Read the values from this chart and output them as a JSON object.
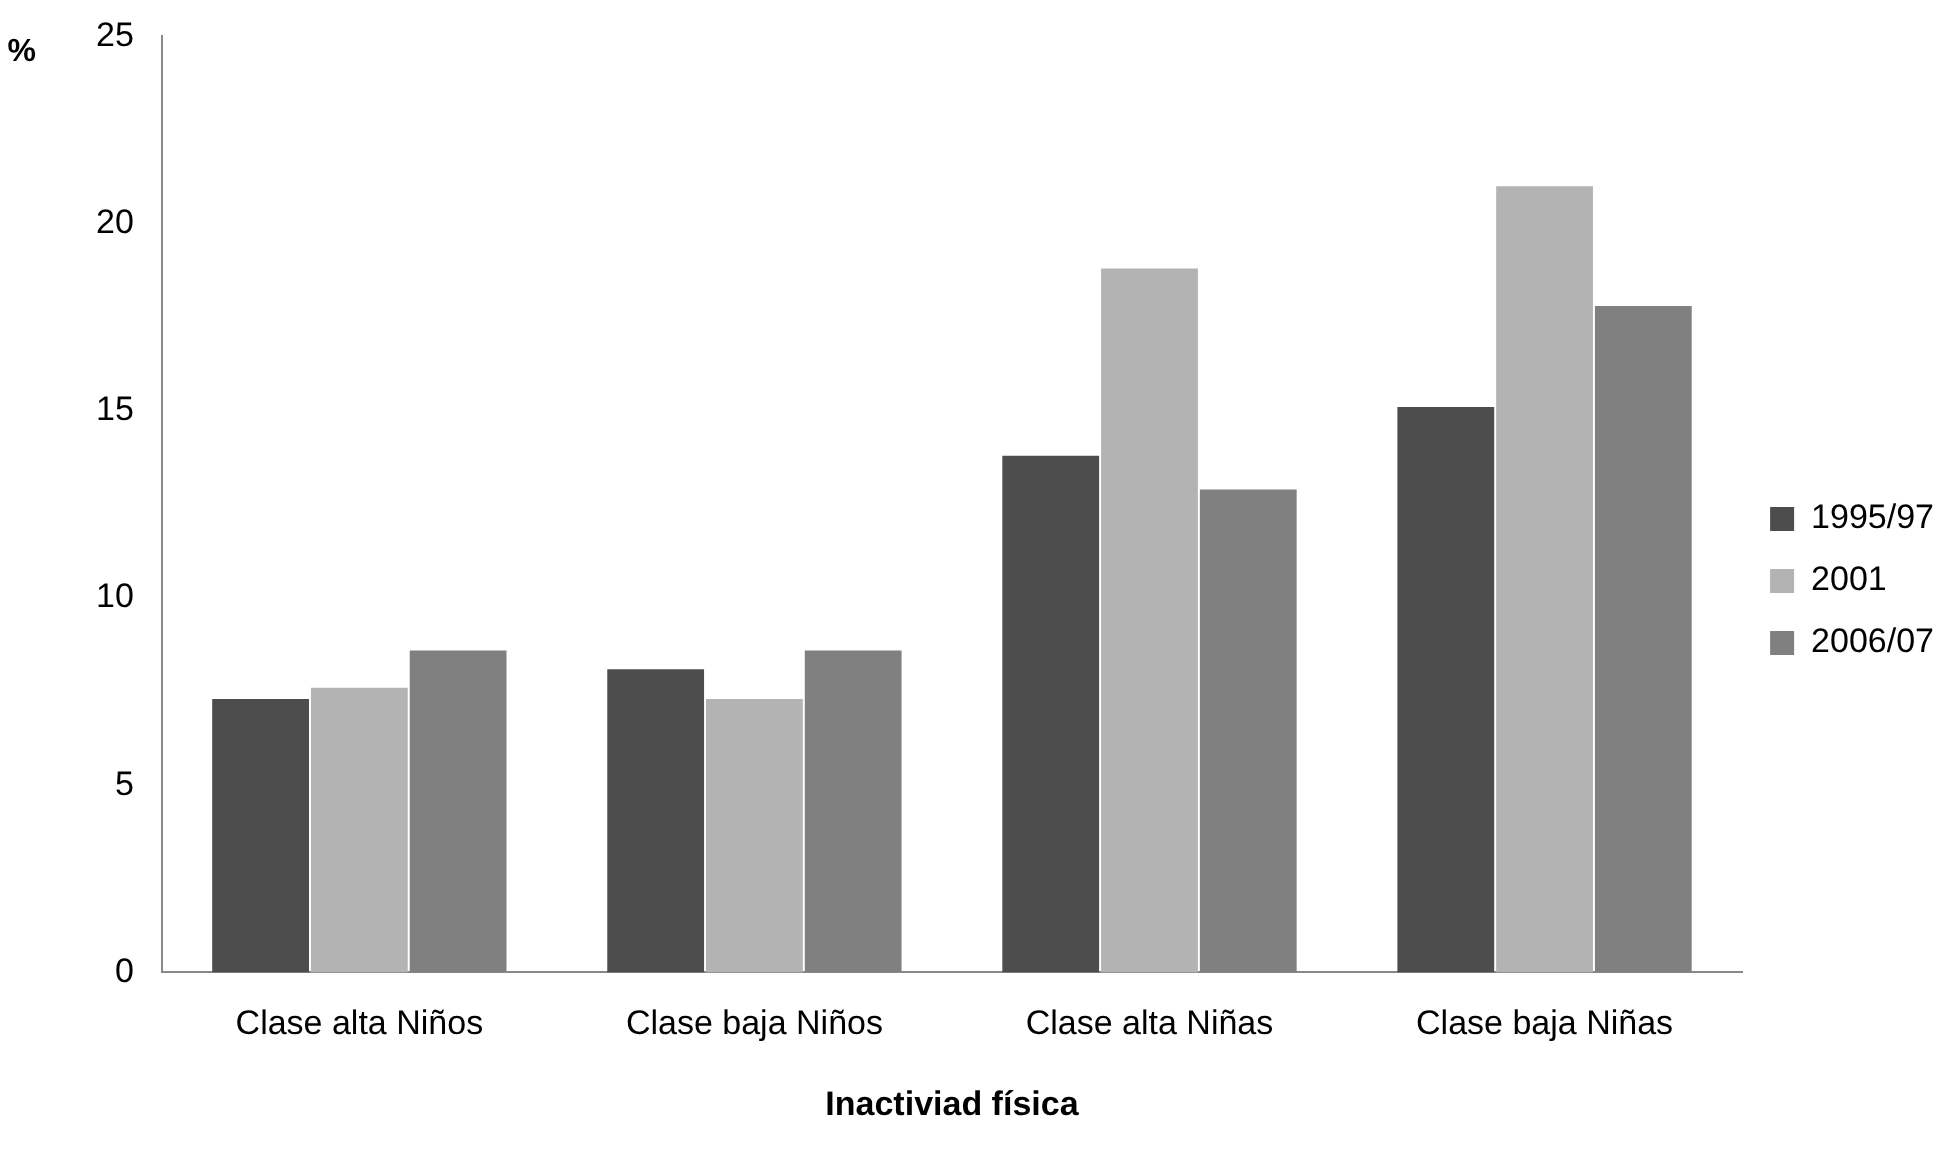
{
  "chart_data": {
    "type": "bar",
    "xlabel": "Inactiviad física",
    "ylabel": "%",
    "categories": [
      "Clase alta Niños",
      "Clase baja Niños",
      "Clase alta Niñas",
      "Clase baja Niñas"
    ],
    "series": [
      {
        "name": "1995/97",
        "color": "#4d4d4d",
        "values": [
          7.3,
          8.1,
          13.8,
          15.1
        ]
      },
      {
        "name": "2001",
        "color": "#b3b3b3",
        "values": [
          7.6,
          7.3,
          18.8,
          21
        ]
      },
      {
        "name": "2006/07",
        "color": "#808080",
        "values": [
          8.6,
          8.6,
          12.9,
          17.8
        ]
      }
    ],
    "ylim": [
      0,
      25
    ],
    "yticks": [
      0,
      5,
      10,
      15,
      20,
      25
    ],
    "grid": false,
    "legend": "right"
  }
}
